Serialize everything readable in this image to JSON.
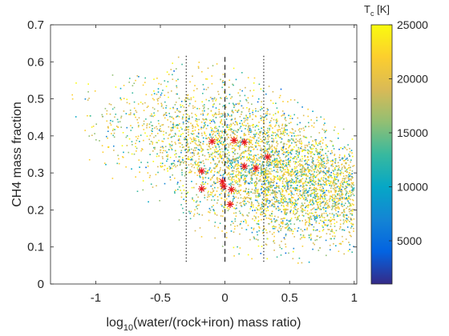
{
  "chart_data": {
    "type": "scatter",
    "xlabel": "log10(water/(rock+iron) mass ratio)",
    "xlabel_parts": {
      "prefix": "log",
      "subscript": "10",
      "suffix": "(water/(rock+iron) mass ratio)"
    },
    "ylabel": "CH4 mass fraction",
    "xlim": [
      -1.35,
      1.02
    ],
    "ylim": [
      0,
      0.7
    ],
    "x_ticks": [
      -1,
      -0.5,
      0,
      0.5,
      1
    ],
    "x_tick_labels": [
      "-1",
      "-0.5",
      "0",
      "0.5",
      "1"
    ],
    "y_ticks": [
      0,
      0.1,
      0.2,
      0.3,
      0.4,
      0.5,
      0.6,
      0.7
    ],
    "y_tick_labels": [
      "0",
      "0.1",
      "0.2",
      "0.3",
      "0.4",
      "0.5",
      "0.6",
      "0.7"
    ],
    "grid": false,
    "colorbar": {
      "title": "T_c [K]",
      "title_parts": {
        "base": "T",
        "subscript": "c",
        "suffix": " [K]"
      },
      "range": [
        1000,
        25000
      ],
      "ticks": [
        5000,
        10000,
        15000,
        20000,
        25000
      ],
      "tick_labels": [
        "5000",
        "10000",
        "15000",
        "20000",
        "25000"
      ],
      "colormap": "parula",
      "colormap_stops": [
        "#352a87",
        "#0363e1",
        "#1485d4",
        "#06a7c6",
        "#38b99e",
        "#92bf73",
        "#d9ba56",
        "#fcce2e",
        "#f9fb0e"
      ]
    },
    "series": [
      {
        "marker": "dot",
        "colored_by": "T_c",
        "point_count_approx": 4500,
        "envelope_x": [
          -1.2,
          1.0
        ],
        "envelope_top": [
          [
            -1.2,
            0.55
          ],
          [
            -0.5,
            0.62
          ],
          [
            0,
            0.6
          ],
          [
            0.5,
            0.52
          ],
          [
            1.0,
            0.4
          ]
        ],
        "envelope_bottom": [
          [
            -1.2,
            0.35
          ],
          [
            -0.5,
            0.2
          ],
          [
            0,
            0.07
          ],
          [
            0.5,
            0.05
          ],
          [
            1.0,
            0.07
          ]
        ]
      },
      {
        "marker": "star",
        "color": "#e8171f",
        "points": [
          {
            "x": -0.1,
            "y": 0.385
          },
          {
            "x": 0.07,
            "y": 0.388
          },
          {
            "x": 0.15,
            "y": 0.383
          },
          {
            "x": 0.33,
            "y": 0.343
          },
          {
            "x": 0.24,
            "y": 0.313
          },
          {
            "x": 0.15,
            "y": 0.318
          },
          {
            "x": -0.18,
            "y": 0.305
          },
          {
            "x": -0.02,
            "y": 0.277
          },
          {
            "x": -0.01,
            "y": 0.264
          },
          {
            "x": -0.18,
            "y": 0.257
          },
          {
            "x": 0.05,
            "y": 0.255
          },
          {
            "x": 0.04,
            "y": 0.215
          }
        ]
      }
    ],
    "vertical_lines": [
      {
        "x": -0.3,
        "style": "dotted",
        "y_range": [
          0.06,
          0.62
        ]
      },
      {
        "x": 0,
        "style": "dashed",
        "y_range": [
          0.06,
          0.62
        ]
      },
      {
        "x": 0.3,
        "style": "dotted",
        "y_range": [
          0.06,
          0.62
        ]
      }
    ]
  }
}
